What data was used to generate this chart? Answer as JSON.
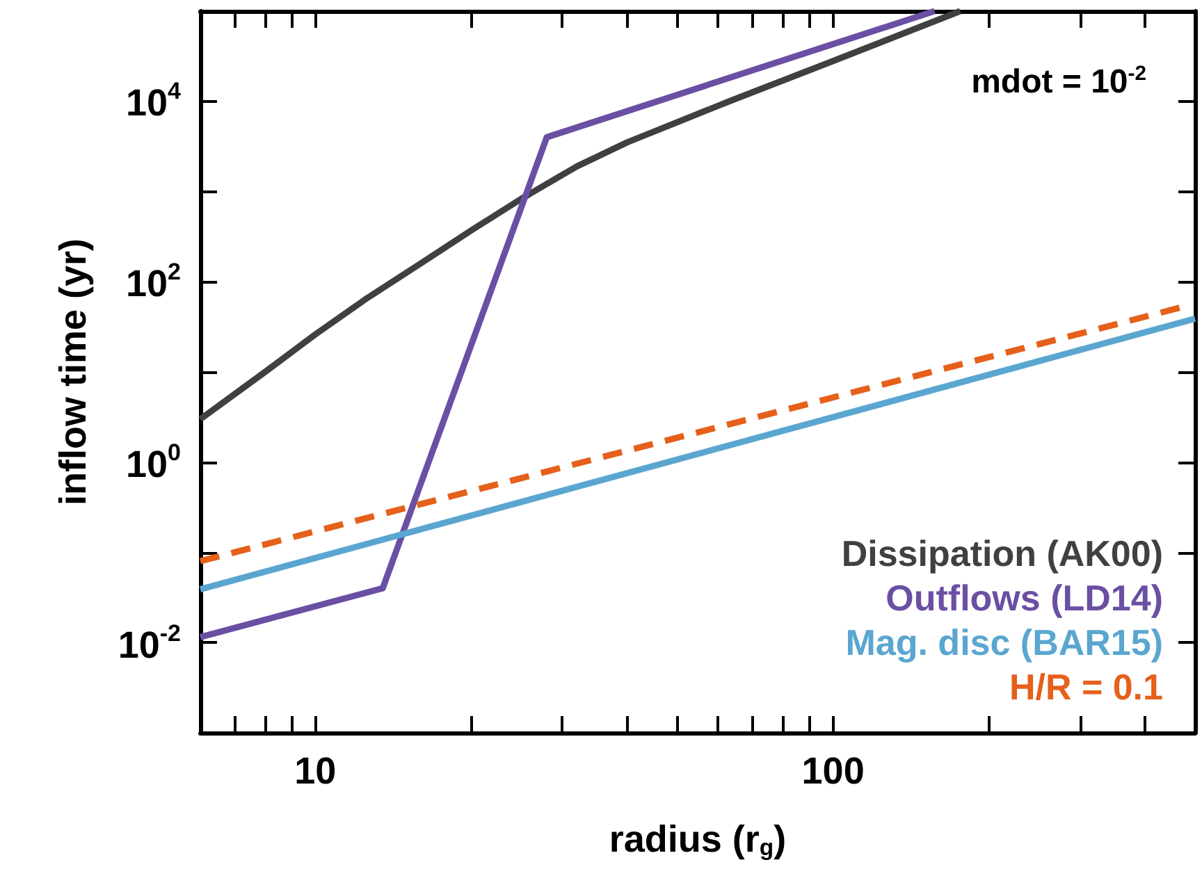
{
  "chart_data": {
    "type": "line",
    "xlabel": "radius (r$_{g}$)",
    "ylabel": "inflow time (yr)",
    "log": "xy",
    "grid": false,
    "legend": "bottom right",
    "marker": "none",
    "annotations": [
      "mdot = 10$^{-2}$"
    ],
    "xlim": [
      6,
      500
    ],
    "ylim": [
      0.001,
      100000
    ],
    "xticks": [
      {
        "value": 7,
        "label": null
      },
      {
        "value": 8,
        "label": null
      },
      {
        "value": 9,
        "label": null
      },
      10,
      {
        "value": 20,
        "label": null
      },
      {
        "value": 30,
        "label": null
      },
      {
        "value": 40,
        "label": null
      },
      {
        "value": 50,
        "label": null
      },
      {
        "value": 60,
        "label": null
      },
      {
        "value": 70,
        "label": null
      },
      {
        "value": 80,
        "label": null
      },
      {
        "value": 90,
        "label": null
      },
      100,
      {
        "value": 200,
        "label": null
      },
      {
        "value": 300,
        "label": null
      },
      {
        "value": 400,
        "label": null
      }
    ],
    "yticks": [
      {
        "value": 0.001,
        "label": null
      },
      {
        "value": 0.01,
        "label": "10$^{-2}$"
      },
      {
        "value": 0.1,
        "label": null
      },
      {
        "value": 1,
        "label": "10$^{0}$"
      },
      {
        "value": 10,
        "label": null
      },
      {
        "value": 100,
        "label": "10$^{2}$"
      },
      {
        "value": 1000,
        "label": null
      },
      {
        "value": 10000,
        "label": "10$^{4}$"
      }
    ],
    "series": [
      {
        "name": "Dissipation (AK00)",
        "color": "#404040",
        "line_style": "solid",
        "x": [
          6,
          8,
          10,
          12.6,
          16,
          20,
          25,
          32,
          40,
          63,
          100,
          176
        ],
        "values": [
          3,
          10,
          26,
          66,
          160,
          370,
          830,
          1900,
          3500,
          10000,
          28000,
          100000
        ]
      },
      {
        "name": "Outflows (LD14)",
        "color": "#6a4fa3",
        "line_style": "solid",
        "x": [
          6,
          13.5,
          28,
          157
        ],
        "values": [
          0.0115,
          0.04,
          4000,
          100000
        ]
      },
      {
        "name": "Mag. disc (BAR15)",
        "color": "#5aa6d0",
        "line_style": "solid",
        "x": [
          6,
          500
        ],
        "values": [
          0.039,
          39
        ]
      },
      {
        "name": "H/R = 0.1",
        "color": "#e5601a",
        "line_style": "dashed",
        "x": [
          6,
          470
        ],
        "values": [
          0.08,
          52
        ]
      }
    ]
  }
}
